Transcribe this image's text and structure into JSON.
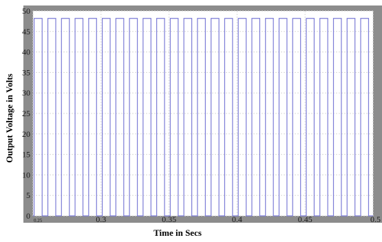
{
  "chart_data": {
    "type": "line",
    "title": "",
    "xlabel": "Time in Secs",
    "ylabel": "Output Voltage in Volts",
    "xlim": [
      0.25,
      0.5
    ],
    "ylim": [
      0,
      50
    ],
    "x_ticks": [
      0.25,
      0.3,
      0.35,
      0.4,
      0.45,
      0.5
    ],
    "x_tick_labels": [
      "0.25",
      "0.3",
      "0.35",
      "0.4",
      "0.45",
      "0.5"
    ],
    "y_ticks": [
      0,
      5,
      10,
      15,
      20,
      25,
      30,
      35,
      40,
      45,
      50
    ],
    "y_tick_labels": [
      "0",
      "5",
      "10",
      "15",
      "20",
      "25",
      "30",
      "35",
      "40",
      "45",
      "50"
    ],
    "grid": true,
    "series": [
      {
        "color": "#7b7bd6",
        "x": [
          0.25,
          0.2508,
          0.2508,
          0.2567,
          0.2567,
          0.2609,
          0.2609,
          0.2667,
          0.2667,
          0.2709,
          0.2709,
          0.2767,
          0.2767,
          0.2809,
          0.2809,
          0.2867,
          0.2867,
          0.2909,
          0.2909,
          0.2967,
          0.2967,
          0.3009,
          0.3009,
          0.3067,
          0.3067,
          0.3109,
          0.3109,
          0.3167,
          0.3167,
          0.3209,
          0.3209,
          0.3267,
          0.3267,
          0.3309,
          0.3309,
          0.3367,
          0.3367,
          0.3409,
          0.3409,
          0.3467,
          0.3467,
          0.3509,
          0.3509,
          0.3567,
          0.3567,
          0.3609,
          0.3609,
          0.3667,
          0.3667,
          0.3709,
          0.3709,
          0.3767,
          0.3767,
          0.3809,
          0.3809,
          0.3867,
          0.3867,
          0.3909,
          0.3909,
          0.3967,
          0.3967,
          0.4009,
          0.4009,
          0.4067,
          0.4067,
          0.4109,
          0.4109,
          0.4167,
          0.4167,
          0.4209,
          0.4209,
          0.4267,
          0.4267,
          0.4309,
          0.4309,
          0.4367,
          0.4367,
          0.4409,
          0.4409,
          0.4467,
          0.4467,
          0.4509,
          0.4509,
          0.4567,
          0.4567,
          0.4609,
          0.4609,
          0.4667,
          0.4667,
          0.4709,
          0.4709,
          0.4767,
          0.4767,
          0.4809,
          0.4809,
          0.4867,
          0.4867,
          0.4909,
          0.4909,
          0.4967,
          0.4967,
          0.5
        ],
        "y": [
          0,
          0,
          48.2,
          48.2,
          0,
          0,
          48.2,
          48.2,
          0,
          0,
          48.2,
          48.2,
          0,
          0,
          48.2,
          48.2,
          0,
          0,
          48.2,
          48.2,
          0,
          0,
          48.2,
          48.2,
          0,
          0,
          48.2,
          48.2,
          0,
          0,
          48.2,
          48.2,
          0,
          0,
          48.2,
          48.2,
          0,
          0,
          48.2,
          48.2,
          0,
          0,
          48.2,
          48.2,
          0,
          0,
          48.2,
          48.2,
          0,
          0,
          48.2,
          48.2,
          0,
          0,
          48.2,
          48.2,
          0,
          0,
          48.2,
          48.2,
          0,
          0,
          48.2,
          48.2,
          0,
          0,
          48.2,
          48.2,
          0,
          0,
          48.2,
          48.2,
          0,
          0,
          48.2,
          48.2,
          0,
          0,
          48.2,
          48.2,
          0,
          0,
          48.2,
          48.2,
          0,
          0,
          48.2,
          48.2,
          0,
          0,
          48.2,
          48.2,
          0,
          0,
          48.2,
          48.2,
          0,
          0,
          48.2,
          48.2,
          0,
          0
        ]
      }
    ]
  },
  "colors": {
    "frame": "#8c8c8c",
    "plot_background": "#ffffff",
    "grid": "#d8d8d8",
    "axis_text": "#1a1a1a"
  }
}
